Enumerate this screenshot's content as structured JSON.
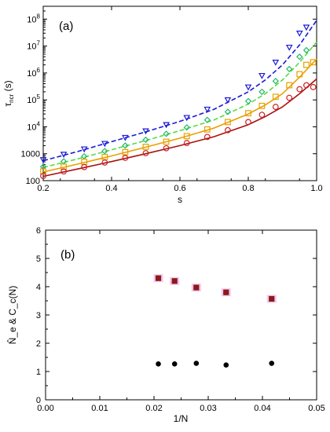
{
  "chart_data": [
    {
      "panel_label": "(a)",
      "type": "scatter",
      "xlabel": "s",
      "ylabel": "τ_ncr (s)",
      "ylabel_main": "τ",
      "ylabel_sub": "ncr",
      "ylabel_unit": " (s)",
      "xlim": [
        0.2,
        1.0
      ],
      "ylim": [
        100,
        300000000
      ],
      "y_scale": "log",
      "x_ticks": [
        "0.2",
        "0.4",
        "0.6",
        "0.8",
        "1.0"
      ],
      "y_ticks": [
        {
          "value": 100,
          "base": "100",
          "exp": ""
        },
        {
          "value": 1000,
          "base": "1000",
          "exp": ""
        },
        {
          "value": 10000,
          "base": "10",
          "exp": "4"
        },
        {
          "value": 100000,
          "base": "10",
          "exp": "5"
        },
        {
          "value": 1000000,
          "base": "10",
          "exp": "6"
        },
        {
          "value": 10000000,
          "base": "10",
          "exp": "7"
        },
        {
          "value": 100000000,
          "base": "10",
          "exp": "8"
        }
      ],
      "series": [
        {
          "marker": "triangle-down",
          "color": "#1a1ad6",
          "fit_color": "#1a1ad6",
          "fit_dash": true,
          "x": [
            0.2,
            0.26,
            0.32,
            0.38,
            0.44,
            0.5,
            0.56,
            0.62,
            0.68,
            0.74,
            0.8,
            0.84,
            0.88,
            0.92,
            0.95,
            0.97
          ],
          "y": [
            600,
            950,
            1500,
            2400,
            4000,
            7000,
            12000,
            22000,
            45000,
            100000,
            300000,
            800000,
            2500000,
            9000000,
            30000000,
            50000000
          ],
          "fit_x": [
            0.2,
            0.3,
            0.4,
            0.5,
            0.6,
            0.7,
            0.8,
            0.85,
            0.9,
            0.95,
            1.0
          ],
          "fit_y": [
            550,
            1200,
            2800,
            6500,
            16000,
            45000,
            200000,
            550000,
            2000000,
            11000000,
            90000000
          ]
        },
        {
          "marker": "diamond",
          "color": "#22b86a",
          "fit_color": "#55dd44",
          "fit_dash": true,
          "x": [
            0.2,
            0.26,
            0.32,
            0.38,
            0.44,
            0.5,
            0.56,
            0.62,
            0.68,
            0.74,
            0.8,
            0.84,
            0.88,
            0.92,
            0.95,
            0.97
          ],
          "y": [
            330,
            520,
            800,
            1250,
            2000,
            3300,
            5500,
            9500,
            18000,
            36000,
            90000,
            200000,
            500000,
            1400000,
            4000000,
            7000000
          ],
          "fit_x": [
            0.2,
            0.3,
            0.4,
            0.5,
            0.6,
            0.7,
            0.8,
            0.85,
            0.9,
            0.95,
            1.0
          ],
          "fit_y": [
            310,
            640,
            1400,
            3100,
            7200,
            18000,
            70000,
            170000,
            550000,
            2500000,
            14000000
          ]
        },
        {
          "marker": "square",
          "color": "#e8a000",
          "fit_color": "#e8a000",
          "fit_dash": false,
          "x": [
            0.2,
            0.26,
            0.32,
            0.38,
            0.44,
            0.5,
            0.56,
            0.62,
            0.68,
            0.74,
            0.8,
            0.84,
            0.88,
            0.92,
            0.95,
            0.97,
            0.99
          ],
          "y": [
            220,
            330,
            500,
            760,
            1150,
            1800,
            2800,
            4500,
            8000,
            15000,
            32000,
            60000,
            130000,
            350000,
            900000,
            2000000,
            2500000
          ],
          "fit_x": [
            0.2,
            0.3,
            0.4,
            0.5,
            0.6,
            0.7,
            0.8,
            0.85,
            0.9,
            0.95,
            1.0
          ],
          "fit_y": [
            210,
            410,
            830,
            1750,
            3800,
            9000,
            30000,
            65000,
            170000,
            700000,
            3300000
          ]
        },
        {
          "marker": "circle",
          "color": "#cc2222",
          "fit_color": "#aa1111",
          "fit_dash": false,
          "x": [
            0.2,
            0.26,
            0.32,
            0.38,
            0.44,
            0.5,
            0.56,
            0.62,
            0.68,
            0.74,
            0.8,
            0.84,
            0.88,
            0.92,
            0.95,
            0.97,
            0.99
          ],
          "y": [
            150,
            220,
            320,
            470,
            700,
            1050,
            1600,
            2500,
            4200,
            7500,
            15000,
            28000,
            55000,
            120000,
            250000,
            350000,
            300000
          ],
          "fit_x": [
            0.2,
            0.3,
            0.4,
            0.5,
            0.6,
            0.7,
            0.8,
            0.85,
            0.9,
            0.95,
            1.0
          ],
          "fit_y": [
            145,
            270,
            510,
            1000,
            2000,
            4300,
            12000,
            24000,
            55000,
            170000,
            600000
          ]
        }
      ]
    },
    {
      "panel_label": "(b)",
      "type": "scatter",
      "xlabel": "1/N",
      "ylabel": "N̂_e & C_c(N)",
      "xlim": [
        0.0,
        0.05
      ],
      "ylim": [
        0,
        6
      ],
      "x_ticks": [
        "0.00",
        "0.01",
        "0.02",
        "0.03",
        "0.04",
        "0.05"
      ],
      "y_ticks": [
        "0",
        "1",
        "2",
        "3",
        "4",
        "5",
        "6"
      ],
      "series": [
        {
          "marker": "square",
          "color": "#8b1a1a",
          "x": [
            0.0208,
            0.0238,
            0.0278,
            0.0333,
            0.0417
          ],
          "y": [
            4.3,
            4.2,
            3.97,
            3.8,
            3.57
          ]
        },
        {
          "marker": "circle",
          "color": "#000000",
          "x": [
            0.0208,
            0.0238,
            0.0278,
            0.0333,
            0.0417
          ],
          "y": [
            1.27,
            1.27,
            1.29,
            1.23,
            1.29
          ]
        }
      ]
    }
  ]
}
